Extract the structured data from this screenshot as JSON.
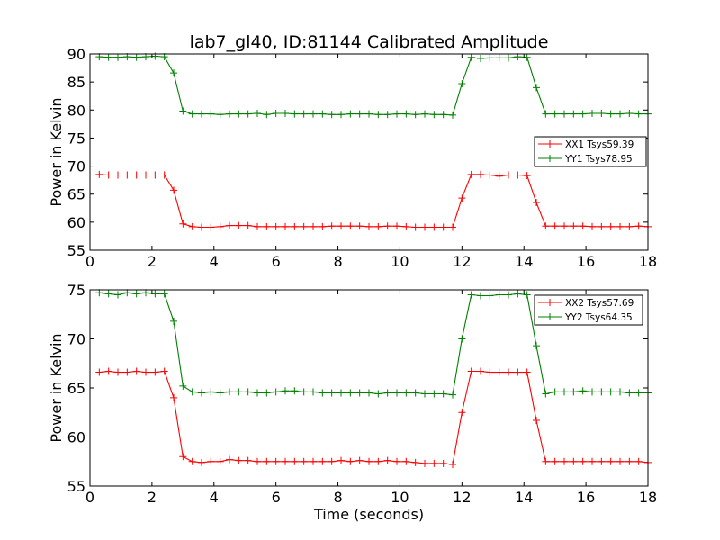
{
  "figure_title": "lab7_gl40, ID:81144 Calibrated Amplitude",
  "chart_data": [
    {
      "type": "line",
      "title": "lab7_gl40, ID:81144 Calibrated Amplitude",
      "xlabel": "",
      "ylabel": "Power in Kelvin",
      "xlim": [
        0,
        18
      ],
      "ylim": [
        55,
        90
      ],
      "x_ticks": [
        "0",
        "2",
        "4",
        "6",
        "8",
        "10",
        "12",
        "14",
        "16",
        "18"
      ],
      "y_ticks": [
        "55",
        "60",
        "65",
        "70",
        "75",
        "80",
        "85",
        "90"
      ],
      "legend_position": "center-right",
      "x": [
        0.3,
        0.6,
        0.9,
        1.2,
        1.5,
        1.8,
        2.1,
        2.4,
        2.7,
        3.0,
        3.3,
        3.6,
        3.9,
        4.2,
        4.5,
        4.8,
        5.1,
        5.4,
        5.7,
        6.0,
        6.3,
        6.6,
        6.9,
        7.2,
        7.5,
        7.8,
        8.1,
        8.4,
        8.7,
        9.0,
        9.3,
        9.6,
        9.9,
        10.2,
        10.5,
        10.8,
        11.1,
        11.4,
        11.7,
        12.0,
        12.3,
        12.6,
        12.9,
        13.2,
        13.5,
        13.8,
        14.1,
        14.4,
        14.7,
        15.0,
        15.3,
        15.6,
        15.9,
        16.2,
        16.5,
        16.8,
        17.1,
        17.4,
        17.7,
        18.0
      ],
      "series": [
        {
          "name": "XX1 Tsys59.39",
          "color": "#ff0000",
          "values": [
            68.5,
            68.4,
            68.4,
            68.4,
            68.4,
            68.4,
            68.4,
            68.4,
            65.7,
            59.7,
            59.2,
            59.1,
            59.1,
            59.2,
            59.4,
            59.4,
            59.4,
            59.2,
            59.2,
            59.2,
            59.2,
            59.2,
            59.2,
            59.2,
            59.2,
            59.3,
            59.3,
            59.3,
            59.3,
            59.2,
            59.2,
            59.3,
            59.3,
            59.2,
            59.1,
            59.1,
            59.1,
            59.1,
            59.1,
            64.3,
            68.5,
            68.5,
            68.4,
            68.2,
            68.4,
            68.4,
            68.3,
            63.5,
            59.3,
            59.3,
            59.3,
            59.3,
            59.3,
            59.2,
            59.2,
            59.2,
            59.2,
            59.2,
            59.3,
            59.2
          ]
        },
        {
          "name": "YY1 Tsys78.95",
          "color": "#008000",
          "values": [
            89.5,
            89.4,
            89.4,
            89.5,
            89.4,
            89.5,
            89.6,
            89.5,
            86.6,
            79.8,
            79.3,
            79.3,
            79.3,
            79.2,
            79.3,
            79.3,
            79.3,
            79.4,
            79.2,
            79.4,
            79.4,
            79.3,
            79.3,
            79.3,
            79.3,
            79.2,
            79.2,
            79.3,
            79.3,
            79.3,
            79.2,
            79.2,
            79.3,
            79.3,
            79.2,
            79.3,
            79.2,
            79.2,
            79.1,
            84.7,
            89.4,
            89.2,
            89.3,
            89.3,
            89.3,
            89.5,
            89.4,
            84.0,
            79.3,
            79.3,
            79.3,
            79.3,
            79.3,
            79.4,
            79.4,
            79.3,
            79.3,
            79.4,
            79.3,
            79.3
          ]
        }
      ]
    },
    {
      "type": "line",
      "title": "",
      "xlabel": "Time (seconds)",
      "ylabel": "Power in Kelvin",
      "xlim": [
        0,
        18
      ],
      "ylim": [
        55,
        75
      ],
      "x_ticks": [
        "0",
        "2",
        "4",
        "6",
        "8",
        "10",
        "12",
        "14",
        "16",
        "18"
      ],
      "y_ticks": [
        "55",
        "60",
        "65",
        "70",
        "75"
      ],
      "legend_position": "top-right",
      "x": [
        0.3,
        0.6,
        0.9,
        1.2,
        1.5,
        1.8,
        2.1,
        2.4,
        2.7,
        3.0,
        3.3,
        3.6,
        3.9,
        4.2,
        4.5,
        4.8,
        5.1,
        5.4,
        5.7,
        6.0,
        6.3,
        6.6,
        6.9,
        7.2,
        7.5,
        7.8,
        8.1,
        8.4,
        8.7,
        9.0,
        9.3,
        9.6,
        9.9,
        10.2,
        10.5,
        10.8,
        11.1,
        11.4,
        11.7,
        12.0,
        12.3,
        12.6,
        12.9,
        13.2,
        13.5,
        13.8,
        14.1,
        14.4,
        14.7,
        15.0,
        15.3,
        15.6,
        15.9,
        16.2,
        16.5,
        16.8,
        17.1,
        17.4,
        17.7,
        18.0
      ],
      "series": [
        {
          "name": "XX2 Tsys57.69",
          "color": "#ff0000",
          "values": [
            66.6,
            66.7,
            66.6,
            66.6,
            66.7,
            66.6,
            66.6,
            66.7,
            64.0,
            58.0,
            57.5,
            57.4,
            57.5,
            57.5,
            57.7,
            57.6,
            57.6,
            57.5,
            57.5,
            57.5,
            57.5,
            57.5,
            57.5,
            57.5,
            57.5,
            57.5,
            57.6,
            57.5,
            57.6,
            57.5,
            57.5,
            57.6,
            57.5,
            57.5,
            57.4,
            57.3,
            57.3,
            57.3,
            57.2,
            62.5,
            66.7,
            66.7,
            66.6,
            66.6,
            66.6,
            66.6,
            66.6,
            61.7,
            57.5,
            57.5,
            57.5,
            57.5,
            57.5,
            57.5,
            57.5,
            57.5,
            57.5,
            57.5,
            57.5,
            57.4
          ]
        },
        {
          "name": "YY2 Tsys64.35",
          "color": "#008000",
          "values": [
            74.7,
            74.6,
            74.5,
            74.7,
            74.6,
            74.7,
            74.6,
            74.6,
            71.8,
            65.2,
            64.6,
            64.5,
            64.6,
            64.5,
            64.6,
            64.6,
            64.6,
            64.5,
            64.5,
            64.6,
            64.7,
            64.7,
            64.6,
            64.6,
            64.5,
            64.5,
            64.5,
            64.5,
            64.5,
            64.5,
            64.4,
            64.5,
            64.5,
            64.5,
            64.5,
            64.4,
            64.4,
            64.4,
            64.3,
            70.0,
            74.5,
            74.4,
            74.4,
            74.5,
            74.5,
            74.6,
            74.5,
            69.3,
            64.4,
            64.6,
            64.6,
            64.6,
            64.7,
            64.6,
            64.6,
            64.6,
            64.6,
            64.5,
            64.5,
            64.5
          ]
        }
      ]
    }
  ]
}
